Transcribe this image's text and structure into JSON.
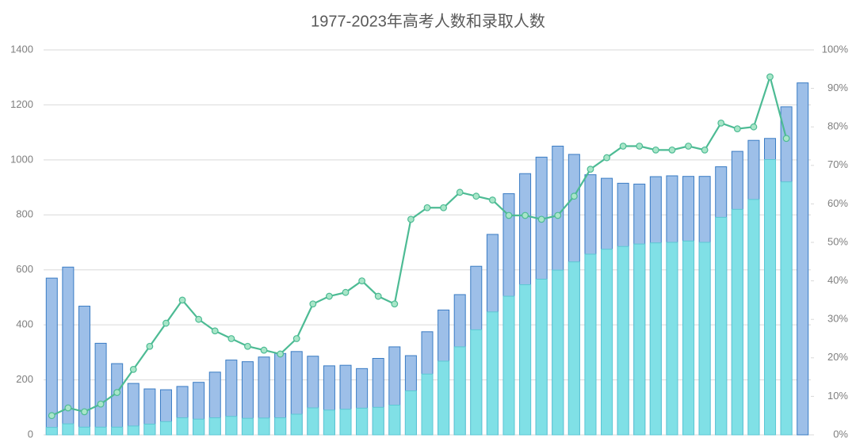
{
  "chart_data": {
    "type": "bar_line",
    "title": "1977-2023年高考人数和录取人数",
    "categories": [
      null,
      null,
      null,
      null,
      null,
      null,
      null,
      null,
      null,
      null,
      null,
      null,
      null,
      null,
      null,
      null,
      null,
      null,
      null,
      null,
      null,
      null,
      null,
      null,
      null,
      null,
      null,
      null,
      null,
      null,
      null,
      null,
      null,
      null,
      null,
      null,
      null,
      null,
      null,
      null,
      null,
      null,
      null,
      null,
      null,
      null,
      null
    ],
    "series": [
      {
        "color": "#9dbfe8",
        "stroke": "#3a7cc4",
        "values": [
          570,
          610,
          468,
          333,
          259,
          187,
          167,
          164,
          176,
          191,
          228,
          272,
          266,
          283,
          296,
          303,
          286,
          251,
          253,
          241,
          278,
          320,
          288,
          375,
          454,
          510,
          613,
          729,
          877,
          950,
          1010,
          1050,
          1020,
          946,
          933,
          915,
          912,
          939,
          942,
          940,
          940,
          975,
          1031,
          1071,
          1078,
          1193,
          1280
        ]
      },
      {
        "color": "#80e0e6",
        "stroke": "#5cc8d4",
        "values": [
          27,
          40,
          28,
          28,
          28,
          32,
          39,
          48,
          62,
          57,
          62,
          67,
          60,
          61,
          62,
          75,
          98,
          90,
          93,
          97,
          100,
          108,
          160,
          221,
          268,
          320,
          382,
          447,
          504,
          546,
          566,
          599,
          629,
          657,
          675,
          685,
          694,
          698,
          700,
          705,
          700,
          791,
          820,
          856,
          1001,
          920,
          null
        ]
      },
      {
        "type": "line",
        "axis": "y2",
        "color": "#4dbb94",
        "marker_color": "#a8e6c8",
        "values": [
          5,
          7,
          6,
          8,
          11,
          17,
          23,
          29,
          35,
          30,
          27,
          25,
          23,
          22,
          21,
          25,
          34,
          36,
          37,
          40,
          36,
          34,
          56,
          59,
          59,
          63,
          62,
          61,
          57,
          57,
          56,
          57,
          62,
          69,
          72,
          75,
          75,
          74,
          74,
          75,
          74,
          81,
          79.5,
          80,
          93,
          77,
          null
        ]
      }
    ],
    "ylim": [
      0,
      1400
    ],
    "yticks": [
      0,
      200,
      400,
      600,
      800,
      1000,
      1200,
      1400
    ],
    "y2lim": [
      0,
      100
    ],
    "y2ticks": [
      {
        "value": 0,
        "label": "0%"
      },
      {
        "value": 10,
        "label": "10%"
      },
      {
        "value": 20,
        "label": "20%"
      },
      {
        "value": 30,
        "label": "30%"
      },
      {
        "value": 40,
        "label": "40%"
      },
      {
        "value": 50,
        "label": "50%"
      },
      {
        "value": 60,
        "label": "60%"
      },
      {
        "value": 70,
        "label": "70%"
      },
      {
        "value": 80,
        "label": "80%"
      },
      {
        "value": 90,
        "label": "90%"
      },
      {
        "value": 100,
        "label": "100%"
      }
    ],
    "grid": true
  }
}
